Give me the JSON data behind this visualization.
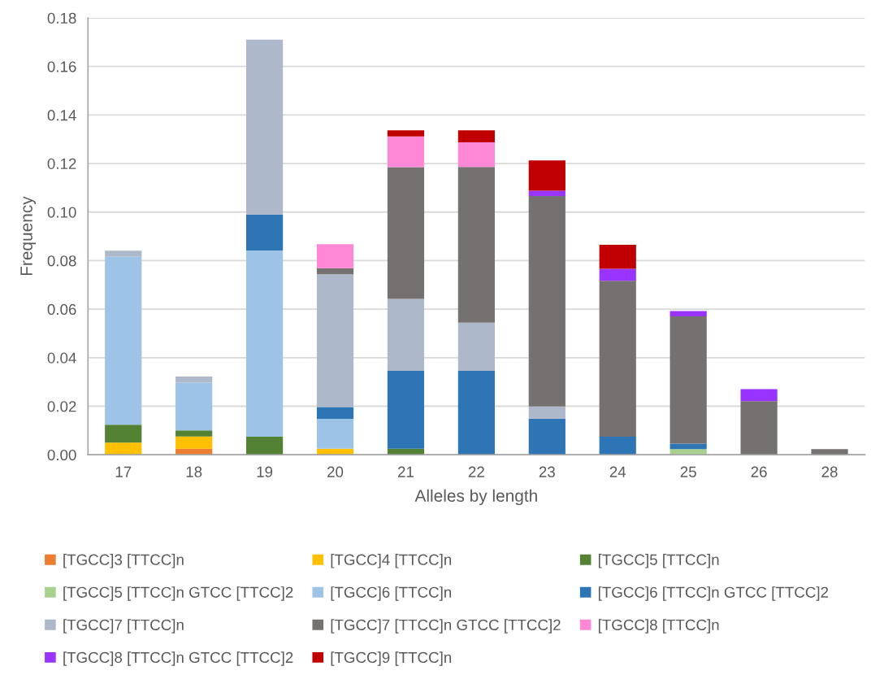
{
  "chart_data": {
    "type": "bar",
    "stacked": true,
    "xlabel": "Alleles by length",
    "ylabel": "Frequency",
    "categories": [
      "17",
      "18",
      "19",
      "20",
      "21",
      "22",
      "23",
      "24",
      "25",
      "26",
      "28"
    ],
    "ylim": [
      0,
      0.18
    ],
    "yticks": [
      {
        "value": 0,
        "label": "0.00"
      },
      {
        "value": 0.02,
        "label": "0.02"
      },
      {
        "value": 0.04,
        "label": "0.04"
      },
      {
        "value": 0.06,
        "label": "0.06"
      },
      {
        "value": 0.08,
        "label": "0.08"
      },
      {
        "value": 0.1,
        "label": "0.10"
      },
      {
        "value": 0.12,
        "label": "0.12"
      },
      {
        "value": 0.14,
        "label": "0.14"
      },
      {
        "value": 0.16,
        "label": "0.16"
      },
      {
        "value": 0.18,
        "label": "0.18"
      }
    ],
    "grid": "y",
    "legend": "bottom",
    "series": [
      {
        "name": "[TGCC]3 [TTCC]n",
        "color": "#ed7d31",
        "values": [
          null,
          0.0025,
          null,
          null,
          null,
          null,
          null,
          null,
          null,
          null,
          null
        ]
      },
      {
        "name": "[TGCC]4 [TTCC]n",
        "color": "#ffc000",
        "values": [
          0.005,
          0.005,
          null,
          0.0025,
          null,
          null,
          null,
          null,
          null,
          null,
          null
        ]
      },
      {
        "name": "[TGCC]5 [TTCC]n",
        "color": "#548235",
        "values": [
          0.0074,
          0.0025,
          0.0074,
          null,
          0.0025,
          null,
          null,
          null,
          null,
          null,
          null
        ]
      },
      {
        "name": "[TGCC]5 [TTCC]n GTCC [TTCC]2",
        "color": "#a9d18e",
        "values": [
          null,
          null,
          null,
          null,
          null,
          null,
          null,
          null,
          0.0023,
          null,
          null
        ]
      },
      {
        "name": "[TGCC]6 [TTCC]n",
        "color": "#9dc3e6",
        "values": [
          0.0692,
          0.0197,
          0.0768,
          0.0123,
          null,
          null,
          null,
          null,
          null,
          null,
          null
        ]
      },
      {
        "name": "[TGCC]6 [TTCC]n GTCC [TTCC]2",
        "color": "#2e75b6",
        "values": [
          null,
          null,
          0.0148,
          0.0049,
          0.0321,
          0.0346,
          0.0149,
          0.0074,
          0.0023,
          null,
          null
        ]
      },
      {
        "name": "[TGCC]7 [TTCC]n",
        "color": "#adb9ca",
        "values": [
          0.0025,
          0.0025,
          0.072,
          0.0547,
          0.0296,
          0.0198,
          0.005,
          null,
          null,
          null,
          null
        ]
      },
      {
        "name": "[TGCC]7 [TTCC]n GTCC [TTCC]2",
        "color": "#767171",
        "values": [
          null,
          null,
          null,
          0.0025,
          0.0543,
          0.0642,
          0.0867,
          0.0643,
          0.0524,
          0.0221,
          0.0023
        ]
      },
      {
        "name": "[TGCC]8 [TTCC]n",
        "color": "#ff88d6",
        "values": [
          null,
          null,
          null,
          0.0099,
          0.0127,
          0.0101,
          null,
          null,
          null,
          null,
          null
        ]
      },
      {
        "name": "[TGCC]8 [TTCC]n GTCC [TTCC]2",
        "color": "#9933ff",
        "values": [
          null,
          null,
          null,
          null,
          null,
          null,
          0.0022,
          0.0049,
          0.0022,
          0.0049,
          null
        ]
      },
      {
        "name": "[TGCC]9 [TTCC]n",
        "color": "#c00000",
        "values": [
          null,
          null,
          null,
          null,
          0.0025,
          0.005,
          0.0125,
          0.0099,
          null,
          null,
          null
        ]
      }
    ]
  }
}
